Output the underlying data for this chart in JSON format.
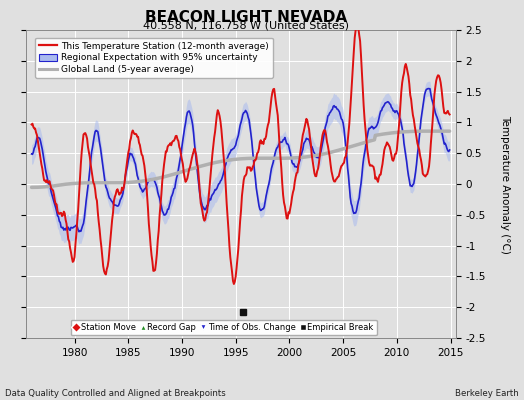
{
  "title": "BEACON LIGHT NEVADA",
  "subtitle": "40.558 N, 116.758 W (United States)",
  "ylabel": "Temperature Anomaly (°C)",
  "footer_left": "Data Quality Controlled and Aligned at Breakpoints",
  "footer_right": "Berkeley Earth",
  "ylim": [
    -2.5,
    2.5
  ],
  "xlim": [
    1975.5,
    2015.5
  ],
  "xticks": [
    1980,
    1985,
    1990,
    1995,
    2000,
    2005,
    2010,
    2015
  ],
  "yticks": [
    -2.5,
    -2,
    -1.5,
    -1,
    -0.5,
    0,
    0.5,
    1,
    1.5,
    2,
    2.5
  ],
  "ytick_labels": [
    "-2.5",
    "-2",
    "-1.5",
    "-1",
    "-0.5",
    "0",
    "0.5",
    "1",
    "1.5",
    "2",
    "2.5"
  ],
  "bg_color": "#e0e0e0",
  "grid_color": "#ffffff",
  "empirical_break_x": 1995.7,
  "empirical_break_y": -2.08,
  "red_line_color": "#dd1111",
  "blue_line_color": "#2222cc",
  "blue_band_color": "#aabbee",
  "gray_line_color": "#b0b0b0",
  "title_fontsize": 11,
  "subtitle_fontsize": 8,
  "tick_fontsize": 7.5,
  "ylabel_fontsize": 7.5,
  "legend_fontsize": 6.5,
  "marker_legend_fontsize": 6.0
}
